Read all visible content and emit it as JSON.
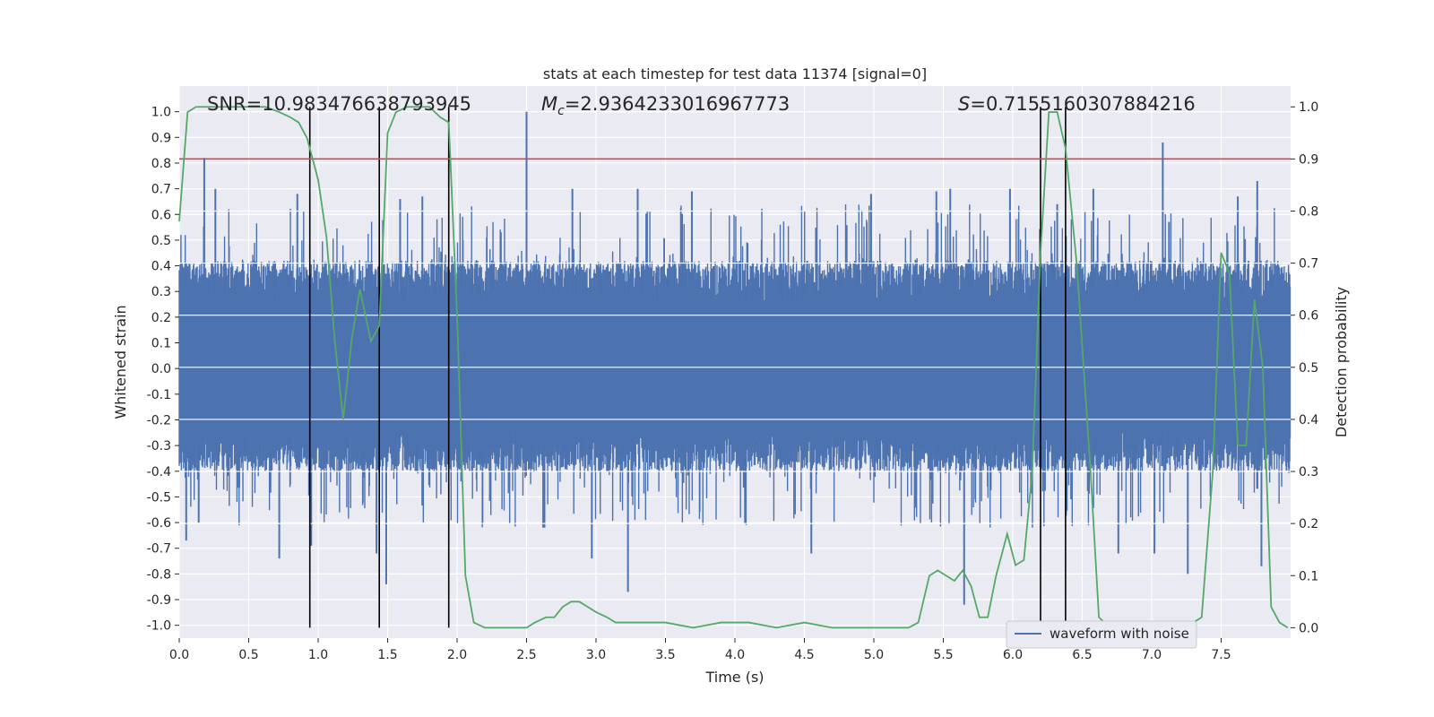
{
  "chart_data": {
    "type": "line",
    "title": "stats at each timestep for test data 11374 [signal=0]",
    "xlabel": "Time (s)",
    "ylabel": "Whitened strain",
    "ylabel_right": "Detection probability",
    "xlim": [
      0,
      8
    ],
    "ylim": [
      -1.05,
      1.1
    ],
    "ylim_right": [
      -0.02,
      1.04
    ],
    "xticks": [
      0.0,
      0.5,
      1.0,
      1.5,
      2.0,
      2.5,
      3.0,
      3.5,
      4.0,
      4.5,
      5.0,
      5.5,
      6.0,
      6.5,
      7.0,
      7.5
    ],
    "xtick_labels": [
      "0.0",
      "0.5",
      "1.0",
      "1.5",
      "2.0",
      "2.5",
      "3.0",
      "3.5",
      "4.0",
      "4.5",
      "5.0",
      "5.5",
      "6.0",
      "6.5",
      "7.0",
      "7.5"
    ],
    "yticks": [
      1.0,
      0.9,
      0.8,
      0.7,
      0.6,
      0.5,
      0.4,
      0.3,
      0.2,
      0.1,
      0.0,
      -0.1,
      -0.2,
      -0.3,
      -0.4,
      -0.5,
      -0.6,
      -0.7,
      -0.8,
      -0.9,
      -1.0
    ],
    "ytick_labels": [
      "1.0",
      "0.9",
      "0.8",
      "0.7",
      "0.6",
      "0.5",
      "0.4",
      "0.3",
      "0.2",
      "0.1",
      "0.0",
      "-0.1",
      "-0.2",
      "-0.3",
      "-0.4",
      "-0.5",
      "-0.6",
      "-0.7",
      "-0.8",
      "-0.9",
      "-1.0"
    ],
    "yticks_right": [
      1.0,
      0.9,
      0.8,
      0.7,
      0.6,
      0.5,
      0.4,
      0.3,
      0.2,
      0.1,
      0.0
    ],
    "ytick_labels_right": [
      "1.0",
      "0.9",
      "0.8",
      "0.7",
      "0.6",
      "0.5",
      "0.4",
      "0.3",
      "0.2",
      "0.1",
      "0.0"
    ],
    "grid": true,
    "legend": {
      "placement": "lower-right",
      "entries": [
        "waveform with noise"
      ]
    },
    "annotations": {
      "snr": "SNR=10.983476638793945",
      "mc_symbol": "M",
      "mc_sub": "c",
      "mc_value": "=2.9364233016967773",
      "s_symbol": "S",
      "s_value": "=0.7155160307884216"
    },
    "threshold_right": 0.9,
    "vertical_lines_x": [
      0.94,
      1.44,
      1.94,
      6.2,
      6.38
    ],
    "waveform": {
      "name": "waveform with noise",
      "color": "#4c72b0",
      "duration_s": 8,
      "envelope_min": -0.4,
      "envelope_max": 0.42,
      "spikes": [
        {
          "x": 0.18,
          "y": 0.82
        },
        {
          "x": 0.26,
          "y": 0.7
        },
        {
          "x": 0.05,
          "y": -0.67
        },
        {
          "x": 0.14,
          "y": -0.6
        },
        {
          "x": 0.72,
          "y": -0.74
        },
        {
          "x": 0.85,
          "y": 0.68
        },
        {
          "x": 0.95,
          "y": -0.69
        },
        {
          "x": 1.42,
          "y": -0.72
        },
        {
          "x": 1.49,
          "y": -0.84
        },
        {
          "x": 1.59,
          "y": 0.66
        },
        {
          "x": 1.75,
          "y": 0.67
        },
        {
          "x": 2.5,
          "y": 1.0
        },
        {
          "x": 2.62,
          "y": -0.62
        },
        {
          "x": 2.83,
          "y": 0.7
        },
        {
          "x": 2.97,
          "y": -0.74
        },
        {
          "x": 3.23,
          "y": -0.87
        },
        {
          "x": 3.3,
          "y": 0.7
        },
        {
          "x": 3.69,
          "y": 0.69
        },
        {
          "x": 4.55,
          "y": -0.72
        },
        {
          "x": 4.98,
          "y": 0.68
        },
        {
          "x": 5.45,
          "y": 0.69
        },
        {
          "x": 5.55,
          "y": 0.7
        },
        {
          "x": 5.65,
          "y": -0.92
        },
        {
          "x": 5.98,
          "y": 0.7
        },
        {
          "x": 6.32,
          "y": 0.64
        },
        {
          "x": 6.58,
          "y": 0.7
        },
        {
          "x": 6.76,
          "y": -0.72
        },
        {
          "x": 7.02,
          "y": -0.72
        },
        {
          "x": 7.08,
          "y": 0.88
        },
        {
          "x": 7.26,
          "y": -0.8
        },
        {
          "x": 7.62,
          "y": 0.67
        },
        {
          "x": 7.76,
          "y": 0.73
        },
        {
          "x": 7.79,
          "y": -0.77
        }
      ]
    },
    "detection_probability": {
      "color": "#55a868",
      "x": [
        0.0,
        0.06,
        0.12,
        0.3,
        0.5,
        0.62,
        0.72,
        0.8,
        0.86,
        0.92,
        1.0,
        1.06,
        1.12,
        1.18,
        1.24,
        1.3,
        1.38,
        1.44,
        1.5,
        1.56,
        1.64,
        1.72,
        1.8,
        1.88,
        1.94,
        2.0,
        2.06,
        2.12,
        2.2,
        2.4,
        2.5,
        2.56,
        2.64,
        2.7,
        2.76,
        2.82,
        2.88,
        2.94,
        3.0,
        3.08,
        3.14,
        3.22,
        3.3,
        3.4,
        3.5,
        3.7,
        3.9,
        4.1,
        4.3,
        4.5,
        4.7,
        4.9,
        5.1,
        5.25,
        5.32,
        5.4,
        5.46,
        5.52,
        5.58,
        5.64,
        5.7,
        5.76,
        5.82,
        5.88,
        5.96,
        6.02,
        6.08,
        6.14,
        6.2,
        6.26,
        6.32,
        6.38,
        6.46,
        6.56,
        6.62,
        6.7,
        6.8,
        7.0,
        7.2,
        7.3,
        7.36,
        7.44,
        7.5,
        7.56,
        7.62,
        7.68,
        7.74,
        7.8,
        7.86,
        7.92,
        7.98
      ],
      "y": [
        0.78,
        0.99,
        1.0,
        1.0,
        1.0,
        1.0,
        0.99,
        0.98,
        0.97,
        0.94,
        0.86,
        0.75,
        0.55,
        0.4,
        0.55,
        0.65,
        0.55,
        0.58,
        0.95,
        0.99,
        1.0,
        1.0,
        1.0,
        0.98,
        0.97,
        0.6,
        0.1,
        0.01,
        0.0,
        0.0,
        0.0,
        0.01,
        0.02,
        0.02,
        0.04,
        0.05,
        0.05,
        0.04,
        0.03,
        0.02,
        0.01,
        0.01,
        0.01,
        0.01,
        0.01,
        0.0,
        0.01,
        0.01,
        0.0,
        0.01,
        0.0,
        0.0,
        0.0,
        0.0,
        0.01,
        0.1,
        0.11,
        0.1,
        0.09,
        0.11,
        0.08,
        0.02,
        0.02,
        0.1,
        0.18,
        0.12,
        0.13,
        0.3,
        0.72,
        0.99,
        0.99,
        0.92,
        0.7,
        0.3,
        0.02,
        0.0,
        0.0,
        0.0,
        0.0,
        0.01,
        0.02,
        0.3,
        0.72,
        0.68,
        0.35,
        0.35,
        0.63,
        0.5,
        0.04,
        0.01,
        0.0
      ]
    }
  }
}
